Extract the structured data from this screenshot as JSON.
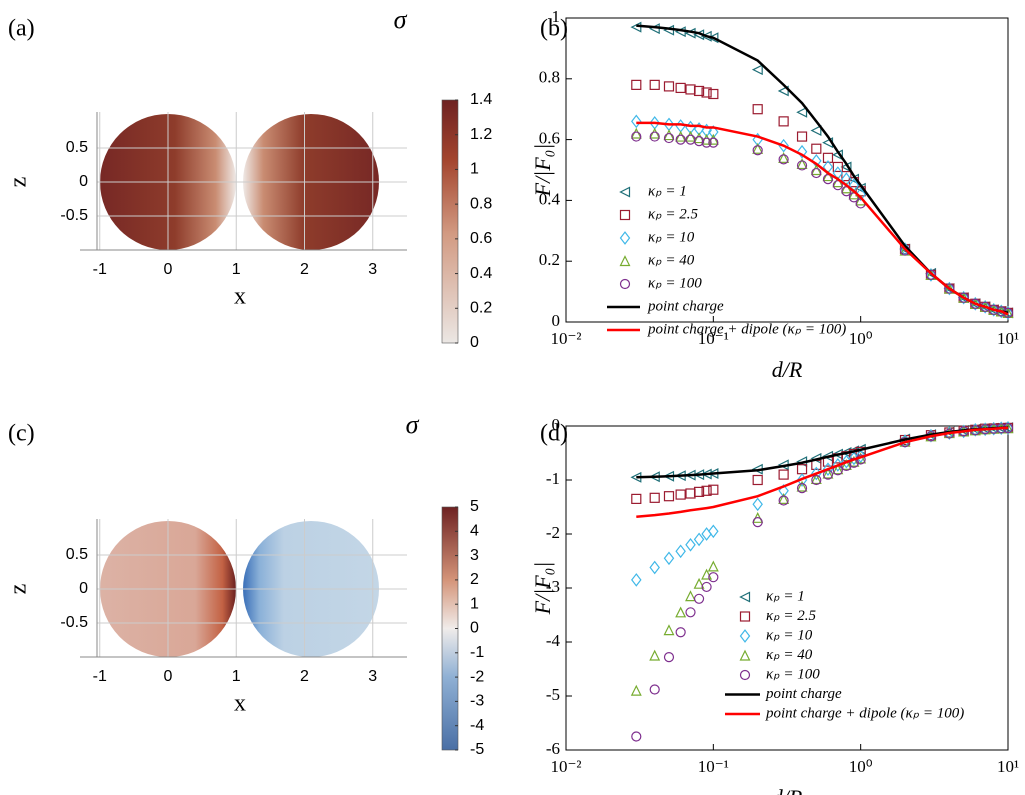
{
  "chart_data": [
    {
      "type": "image",
      "label": "(a)",
      "xlabel": "x",
      "ylabel": "z",
      "colorbar_label": "σ",
      "xticks": [
        -1,
        0,
        1,
        2,
        3
      ],
      "yticks": [
        -0.5,
        0,
        0.5
      ],
      "clim": [
        0,
        1.4
      ],
      "cticks": [
        0,
        0.2,
        0.4,
        0.6,
        0.8,
        1,
        1.2,
        1.4
      ]
    },
    {
      "type": "scatter",
      "label": "(b)",
      "xlabel": "d/R",
      "ylabel": "F/|F₀|",
      "xscale": "log",
      "xlim": [
        0.01,
        10
      ],
      "ylim": [
        0,
        1
      ],
      "xticks": [
        {
          "value": 0.01,
          "label": "10⁻²"
        },
        {
          "value": 0.1,
          "label": "10⁻¹"
        },
        {
          "value": 1,
          "label": "10⁰"
        },
        {
          "value": 10,
          "label": "10¹"
        }
      ],
      "yticks": [
        0,
        0.2,
        0.4,
        0.6,
        0.8,
        1
      ],
      "x": [
        0.03,
        0.04,
        0.05,
        0.06,
        0.07,
        0.08,
        0.09,
        0.1,
        0.2,
        0.3,
        0.4,
        0.5,
        0.6,
        0.7,
        0.8,
        0.9,
        1,
        2,
        3,
        4,
        5,
        6,
        7,
        8,
        9,
        10
      ],
      "series": [
        {
          "name": "κₚ = 1",
          "color": "#1f6f78",
          "marker": "<",
          "values": [
            0.97,
            0.965,
            0.96,
            0.955,
            0.95,
            0.945,
            0.94,
            0.935,
            0.83,
            0.76,
            0.69,
            0.63,
            0.59,
            0.55,
            0.51,
            0.47,
            0.44,
            0.24,
            0.16,
            0.11,
            0.08,
            0.06,
            0.05,
            0.04,
            0.035,
            0.03
          ]
        },
        {
          "name": "κₚ = 2.5",
          "color": "#9b1b30",
          "marker": "s",
          "values": [
            0.78,
            0.78,
            0.775,
            0.77,
            0.765,
            0.76,
            0.755,
            0.75,
            0.7,
            0.66,
            0.61,
            0.57,
            0.54,
            0.51,
            0.48,
            0.46,
            0.43,
            0.24,
            0.155,
            0.11,
            0.08,
            0.06,
            0.05,
            0.04,
            0.035,
            0.03
          ]
        },
        {
          "name": "κₚ = 10",
          "color": "#40b8e8",
          "marker": "d",
          "values": [
            0.66,
            0.655,
            0.65,
            0.645,
            0.64,
            0.635,
            0.63,
            0.625,
            0.6,
            0.58,
            0.56,
            0.53,
            0.51,
            0.49,
            0.47,
            0.45,
            0.42,
            0.24,
            0.155,
            0.11,
            0.08,
            0.06,
            0.05,
            0.04,
            0.035,
            0.03
          ]
        },
        {
          "name": "κₚ = 40",
          "color": "#77ac30",
          "marker": "^",
          "values": [
            0.62,
            0.62,
            0.615,
            0.61,
            0.61,
            0.605,
            0.6,
            0.6,
            0.57,
            0.54,
            0.52,
            0.5,
            0.48,
            0.46,
            0.44,
            0.42,
            0.4,
            0.235,
            0.155,
            0.11,
            0.08,
            0.06,
            0.05,
            0.04,
            0.035,
            0.03
          ]
        },
        {
          "name": "κₚ = 100",
          "color": "#7e2f8e",
          "marker": "o",
          "values": [
            0.61,
            0.61,
            0.605,
            0.6,
            0.6,
            0.595,
            0.59,
            0.59,
            0.565,
            0.535,
            0.515,
            0.49,
            0.47,
            0.45,
            0.43,
            0.41,
            0.39,
            0.235,
            0.155,
            0.11,
            0.08,
            0.06,
            0.05,
            0.04,
            0.035,
            0.03
          ]
        },
        {
          "name": "point charge",
          "color": "#000000",
          "values": [
            0.975,
            0.97,
            0.965,
            0.96,
            0.955,
            0.95,
            0.94,
            0.935,
            0.86,
            0.78,
            0.72,
            0.66,
            0.61,
            0.56,
            0.52,
            0.48,
            0.45,
            0.25,
            0.16,
            0.11,
            0.08,
            0.06,
            0.05,
            0.04,
            0.035,
            0.03
          ]
        },
        {
          "name": "point charge + dipole (κₚ = 100)",
          "color": "#ff0000",
          "values": [
            0.655,
            0.655,
            0.65,
            0.65,
            0.645,
            0.645,
            0.64,
            0.64,
            0.61,
            0.58,
            0.55,
            0.52,
            0.49,
            0.47,
            0.45,
            0.43,
            0.41,
            0.24,
            0.16,
            0.11,
            0.08,
            0.06,
            0.05,
            0.04,
            0.035,
            0.025
          ]
        }
      ]
    },
    {
      "type": "image",
      "label": "(c)",
      "xlabel": "x",
      "ylabel": "z",
      "colorbar_label": "σ",
      "xticks": [
        -1,
        0,
        1,
        2,
        3
      ],
      "yticks": [
        -0.5,
        0,
        0.5
      ],
      "clim": [
        -5,
        5
      ],
      "cticks": [
        -5,
        -4,
        -3,
        -2,
        -1,
        0,
        1,
        2,
        3,
        4,
        5
      ]
    },
    {
      "type": "scatter",
      "label": "(d)",
      "xlabel": "d/R",
      "ylabel": "F/|F₀|",
      "xscale": "log",
      "xlim": [
        0.01,
        10
      ],
      "ylim": [
        -6,
        0
      ],
      "xticks": [
        {
          "value": 0.01,
          "label": "10⁻²"
        },
        {
          "value": 0.1,
          "label": "10⁻¹"
        },
        {
          "value": 1,
          "label": "10⁰"
        },
        {
          "value": 10,
          "label": "10¹"
        }
      ],
      "yticks": [
        -6,
        -5,
        -4,
        -3,
        -2,
        -1,
        0
      ],
      "x": [
        0.03,
        0.04,
        0.05,
        0.06,
        0.07,
        0.08,
        0.09,
        0.1,
        0.2,
        0.3,
        0.4,
        0.5,
        0.6,
        0.7,
        0.8,
        0.9,
        1,
        2,
        3,
        4,
        5,
        6,
        7,
        8,
        9,
        10
      ],
      "series": [
        {
          "name": "κₚ = 1",
          "color": "#1f6f78",
          "marker": "<",
          "values": [
            -0.95,
            -0.94,
            -0.93,
            -0.92,
            -0.91,
            -0.9,
            -0.89,
            -0.88,
            -0.8,
            -0.72,
            -0.66,
            -0.6,
            -0.56,
            -0.52,
            -0.49,
            -0.46,
            -0.43,
            -0.24,
            -0.16,
            -0.11,
            -0.08,
            -0.06,
            -0.05,
            -0.04,
            -0.035,
            -0.03
          ]
        },
        {
          "name": "κₚ = 2.5",
          "color": "#9b1b30",
          "marker": "s",
          "values": [
            -1.35,
            -1.33,
            -1.3,
            -1.27,
            -1.25,
            -1.22,
            -1.2,
            -1.18,
            -1,
            -0.9,
            -0.8,
            -0.72,
            -0.66,
            -0.6,
            -0.56,
            -0.52,
            -0.48,
            -0.26,
            -0.17,
            -0.12,
            -0.09,
            -0.07,
            -0.05,
            -0.045,
            -0.04,
            -0.035
          ]
        },
        {
          "name": "κₚ = 10",
          "color": "#40b8e8",
          "marker": "d",
          "values": [
            -2.85,
            -2.62,
            -2.45,
            -2.32,
            -2.2,
            -2.1,
            -2,
            -1.95,
            -1.45,
            -1.2,
            -1,
            -0.88,
            -0.8,
            -0.72,
            -0.66,
            -0.6,
            -0.56,
            -0.28,
            -0.18,
            -0.13,
            -0.1,
            -0.07,
            -0.06,
            -0.05,
            -0.04,
            -0.035
          ]
        },
        {
          "name": "κₚ = 40",
          "color": "#77ac30",
          "marker": "^",
          "values": [
            -4.9,
            -4.25,
            -3.78,
            -3.45,
            -3.15,
            -2.92,
            -2.75,
            -2.6,
            -1.7,
            -1.35,
            -1.12,
            -0.98,
            -0.88,
            -0.8,
            -0.72,
            -0.66,
            -0.6,
            -0.29,
            -0.19,
            -0.13,
            -0.1,
            -0.08,
            -0.06,
            -0.05,
            -0.045,
            -0.04
          ]
        },
        {
          "name": "κₚ = 100",
          "color": "#7e2f8e",
          "marker": "o",
          "values": [
            -5.75,
            -4.88,
            -4.28,
            -3.82,
            -3.45,
            -3.2,
            -2.98,
            -2.8,
            -1.78,
            -1.38,
            -1.15,
            -1,
            -0.9,
            -0.82,
            -0.74,
            -0.68,
            -0.62,
            -0.3,
            -0.19,
            -0.14,
            -0.1,
            -0.08,
            -0.06,
            -0.05,
            -0.045,
            -0.04
          ]
        },
        {
          "name": "point charge",
          "color": "#000000",
          "values": [
            -0.95,
            -0.94,
            -0.93,
            -0.92,
            -0.91,
            -0.9,
            -0.89,
            -0.88,
            -0.82,
            -0.74,
            -0.68,
            -0.62,
            -0.57,
            -0.53,
            -0.5,
            -0.47,
            -0.44,
            -0.25,
            -0.16,
            -0.11,
            -0.08,
            -0.06,
            -0.05,
            -0.04,
            -0.035,
            -0.03
          ]
        },
        {
          "name": "point charge + dipole (κₚ = 100)",
          "color": "#ff0000",
          "values": [
            -1.68,
            -1.65,
            -1.62,
            -1.59,
            -1.56,
            -1.54,
            -1.52,
            -1.5,
            -1.3,
            -1.12,
            -0.98,
            -0.88,
            -0.8,
            -0.73,
            -0.67,
            -0.62,
            -0.58,
            -0.3,
            -0.19,
            -0.13,
            -0.1,
            -0.07,
            -0.06,
            -0.05,
            -0.04,
            -0.035
          ]
        }
      ]
    }
  ]
}
